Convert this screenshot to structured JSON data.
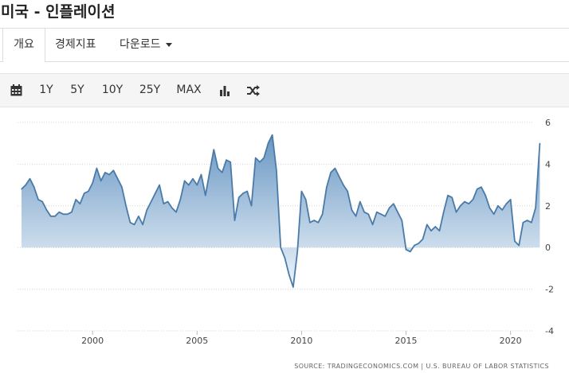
{
  "page": {
    "title": "미국 - 인플레이션"
  },
  "tabs": [
    {
      "label": "개요",
      "active": true
    },
    {
      "label": "경제지표",
      "active": false
    },
    {
      "label": "다운로드",
      "active": false
    }
  ],
  "toolbar": {
    "calendar_icon": "calendar-icon",
    "ranges": [
      "1Y",
      "5Y",
      "10Y",
      "25Y",
      "MAX"
    ],
    "chart_type_icon": "bar-chart-icon",
    "compare_icon": "shuffle-icon"
  },
  "colors": {
    "line": "#4a7ba8",
    "fill_top": "#6f9cc6",
    "fill_bottom": "#eef4fa",
    "grid": "#d7d7d7"
  },
  "chart_data": {
    "type": "area",
    "y_ticks": [
      "6",
      "4",
      "2",
      "0",
      "-2",
      "-4"
    ],
    "x_ticks": [
      "2000",
      "2005",
      "2010",
      "2015",
      "2020"
    ],
    "ylim": [
      -4,
      6
    ],
    "xlim": [
      1996.6,
      2021.5
    ],
    "grid": "horizontal dotted",
    "source": "SOURCE: TRADINGECONOMICS.COM  |  U.S. BUREAU OF LABOR STATISTICS",
    "x": [
      1996.6,
      1996.8,
      1997.0,
      1997.2,
      1997.4,
      1997.6,
      1997.8,
      1998.0,
      1998.2,
      1998.4,
      1998.6,
      1998.8,
      1999.0,
      1999.2,
      1999.4,
      1999.6,
      1999.8,
      2000.0,
      2000.2,
      2000.4,
      2000.6,
      2000.8,
      2001.0,
      2001.2,
      2001.4,
      2001.6,
      2001.8,
      2002.0,
      2002.2,
      2002.4,
      2002.6,
      2002.8,
      2003.0,
      2003.2,
      2003.4,
      2003.6,
      2003.8,
      2004.0,
      2004.2,
      2004.4,
      2004.6,
      2004.8,
      2005.0,
      2005.2,
      2005.4,
      2005.6,
      2005.8,
      2006.0,
      2006.2,
      2006.4,
      2006.6,
      2006.8,
      2007.0,
      2007.2,
      2007.4,
      2007.6,
      2007.8,
      2008.0,
      2008.2,
      2008.4,
      2008.6,
      2008.8,
      2009.0,
      2009.2,
      2009.4,
      2009.6,
      2009.8,
      2010.0,
      2010.2,
      2010.4,
      2010.6,
      2010.8,
      2011.0,
      2011.2,
      2011.4,
      2011.6,
      2011.8,
      2012.0,
      2012.2,
      2012.4,
      2012.6,
      2012.8,
      2013.0,
      2013.2,
      2013.4,
      2013.6,
      2013.8,
      2014.0,
      2014.2,
      2014.4,
      2014.6,
      2014.8,
      2015.0,
      2015.2,
      2015.4,
      2015.6,
      2015.8,
      2016.0,
      2016.2,
      2016.4,
      2016.6,
      2016.8,
      2017.0,
      2017.2,
      2017.4,
      2017.6,
      2017.8,
      2018.0,
      2018.2,
      2018.4,
      2018.6,
      2018.8,
      2019.0,
      2019.2,
      2019.4,
      2019.6,
      2019.8,
      2020.0,
      2020.2,
      2020.4,
      2020.6,
      2020.8,
      2021.0,
      2021.2,
      2021.4
    ],
    "values": [
      2.8,
      3.0,
      3.3,
      2.9,
      2.3,
      2.2,
      1.8,
      1.5,
      1.5,
      1.7,
      1.6,
      1.6,
      1.7,
      2.3,
      2.1,
      2.6,
      2.7,
      3.1,
      3.8,
      3.2,
      3.6,
      3.5,
      3.7,
      3.3,
      2.9,
      2.0,
      1.2,
      1.1,
      1.5,
      1.1,
      1.8,
      2.2,
      2.6,
      3.0,
      2.1,
      2.2,
      1.9,
      1.7,
      2.3,
      3.2,
      3.0,
      3.3,
      3.0,
      3.5,
      2.5,
      3.6,
      4.7,
      3.8,
      3.6,
      4.2,
      4.1,
      1.3,
      2.4,
      2.6,
      2.7,
      2.0,
      4.3,
      4.1,
      4.3,
      5.0,
      5.4,
      3.7,
      0.0,
      -0.5,
      -1.3,
      -1.9,
      -0.2,
      2.7,
      2.3,
      1.2,
      1.3,
      1.2,
      1.6,
      2.9,
      3.6,
      3.8,
      3.4,
      3.0,
      2.7,
      1.8,
      1.5,
      2.2,
      1.7,
      1.6,
      1.1,
      1.7,
      1.6,
      1.5,
      1.9,
      2.1,
      1.7,
      1.3,
      -0.1,
      -0.2,
      0.1,
      0.2,
      0.4,
      1.1,
      0.8,
      1.0,
      0.8,
      1.7,
      2.5,
      2.4,
      1.7,
      2.0,
      2.2,
      2.1,
      2.3,
      2.8,
      2.9,
      2.5,
      1.9,
      1.6,
      2.0,
      1.8,
      2.1,
      2.3,
      0.3,
      0.1,
      1.2,
      1.3,
      1.2,
      1.9,
      5.0
    ]
  }
}
